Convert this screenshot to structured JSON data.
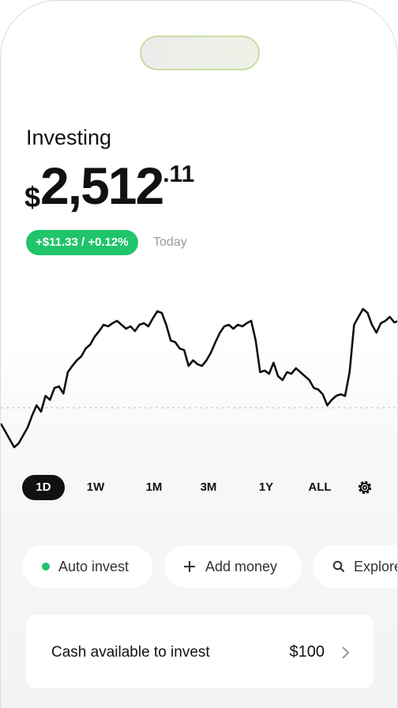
{
  "header": {
    "title": "Investing",
    "currency": "$",
    "amount": "2,512",
    "cents": ".11"
  },
  "change": {
    "label": "+$11.33 / +0.12%",
    "period": "Today"
  },
  "chart_data": {
    "type": "line",
    "color": "#111111",
    "ylim": [
      0,
      200
    ],
    "baseline": 55,
    "values": [
      35,
      25,
      15,
      5,
      10,
      20,
      30,
      45,
      58,
      50,
      70,
      65,
      80,
      82,
      73,
      100,
      108,
      115,
      120,
      130,
      135,
      145,
      152,
      160,
      158,
      162,
      165,
      160,
      155,
      158,
      152,
      160,
      162,
      158,
      168,
      177,
      175,
      160,
      140,
      138,
      130,
      128,
      108,
      115,
      110,
      108,
      115,
      125,
      138,
      150,
      158,
      160,
      155,
      160,
      158,
      162,
      165,
      140,
      100,
      102,
      98,
      112,
      95,
      90,
      100,
      98,
      105,
      100,
      95,
      90,
      80,
      78,
      72,
      58,
      65,
      70,
      72,
      70,
      100,
      160,
      170,
      180,
      175,
      160,
      150,
      162,
      165,
      170,
      163,
      165
    ]
  },
  "ranges": [
    "1D",
    "1W",
    "1M",
    "3M",
    "1Y",
    "ALL"
  ],
  "actions": [
    "Auto invest",
    "Add money",
    "Explore"
  ],
  "cash_card": {
    "label": "Cash available to invest",
    "amount": "$100"
  }
}
